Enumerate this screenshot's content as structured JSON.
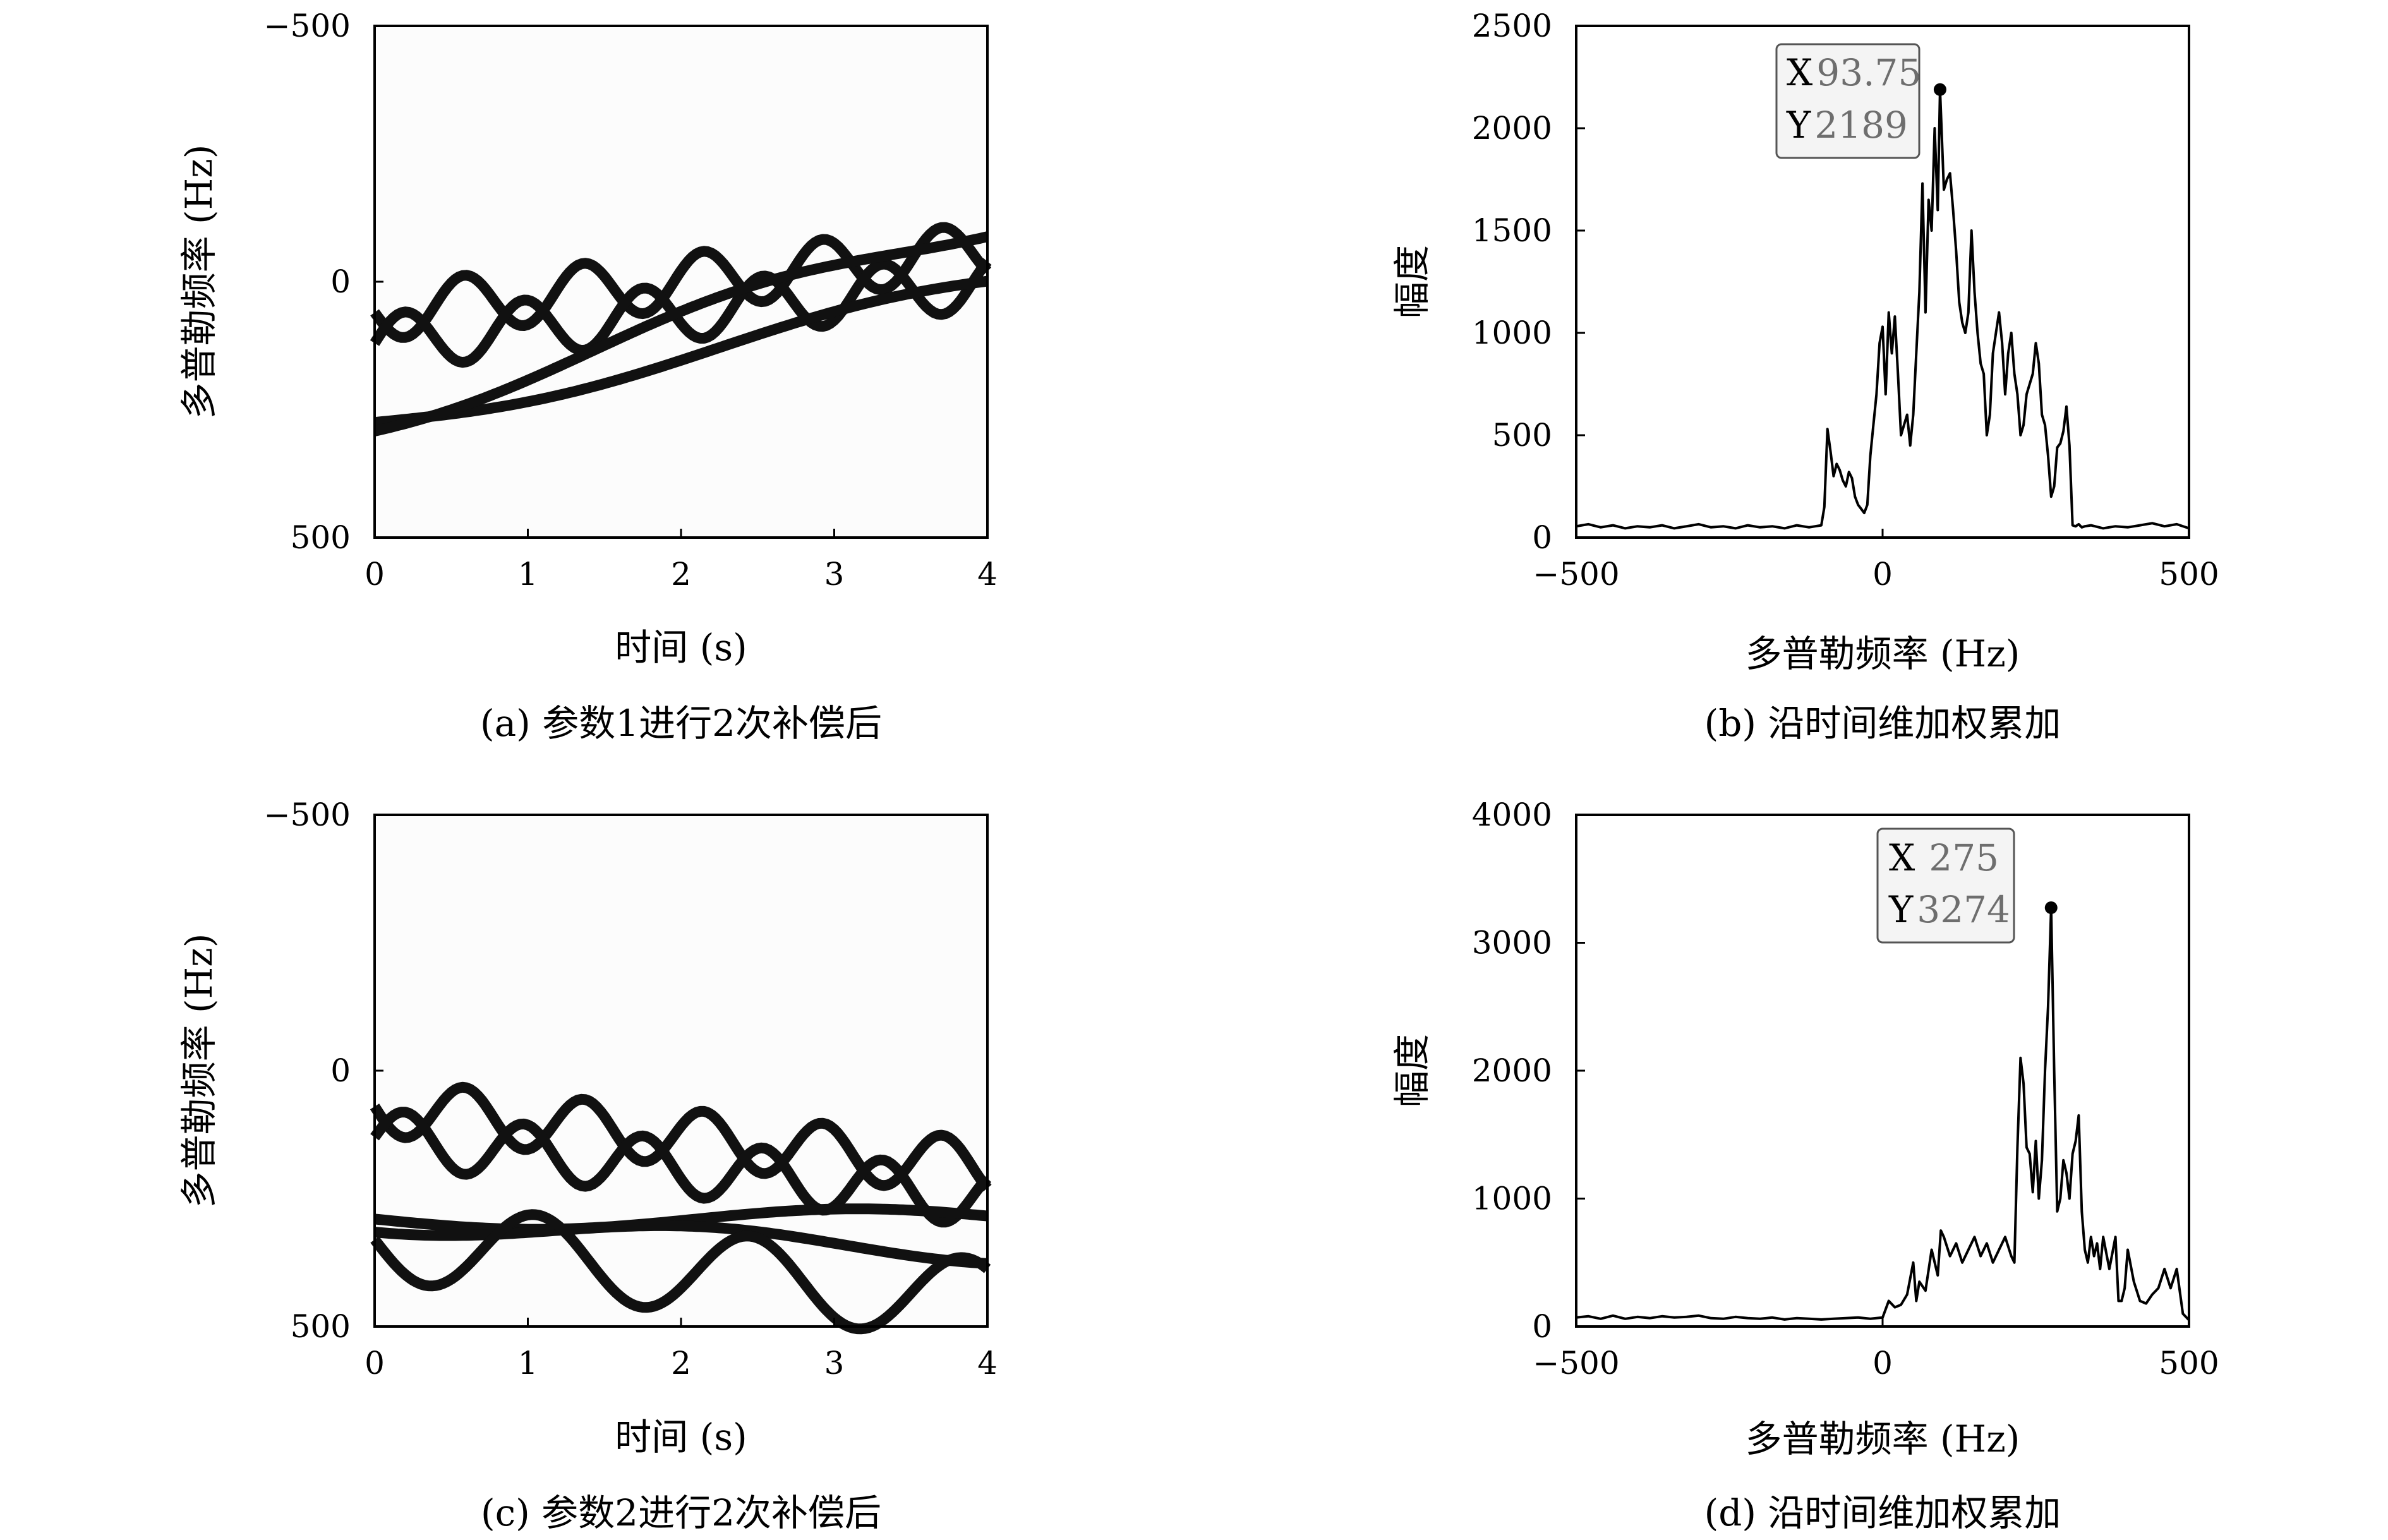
{
  "chart_data": [
    {
      "id": "a",
      "type": "heatmap",
      "caption": "(a) 参数1进行2次补偿后",
      "xlabel": "时间 (s)",
      "ylabel": "多普勒频率 (Hz)",
      "xlim": [
        0,
        4
      ],
      "ylim": [
        -500,
        500
      ],
      "y_inverted": true,
      "xticks": [
        0,
        1,
        2,
        3,
        4
      ],
      "yticks": [
        -500,
        0,
        500
      ],
      "xtick_labels": [
        "0",
        "1",
        "2",
        "3",
        "4"
      ],
      "ytick_labels": [
        "−500",
        "0",
        "500"
      ],
      "colormap": "gray-inverted",
      "ink_color": "#111111",
      "curves": [
        {
          "base": 60,
          "slope": -30,
          "amp": 55,
          "period": 0.78,
          "phase": 0.0
        },
        {
          "base": 120,
          "slope": -30,
          "amp": 55,
          "period": 0.78,
          "phase": 3.1416
        },
        {
          "base": 275,
          "slope": -65,
          "amp": 25,
          "period": 4.5,
          "phase": 0.0
        },
        {
          "base": 270,
          "slope": -95,
          "amp": 28,
          "period": 4.0,
          "phase": 0.9
        }
      ]
    },
    {
      "id": "b",
      "type": "line",
      "caption": "(b) 沿时间维加权累加",
      "xlabel": "多普勒频率 (Hz)",
      "ylabel": "幅度",
      "xlim": [
        -500,
        500
      ],
      "ylim": [
        0,
        2500
      ],
      "xticks": [
        -500,
        0,
        500
      ],
      "yticks": [
        0,
        500,
        1000,
        1500,
        2000,
        2500
      ],
      "xtick_labels": [
        "−500",
        "0",
        "500"
      ],
      "ytick_labels": [
        "0",
        "500",
        "1000",
        "1500",
        "2000",
        "2500"
      ],
      "line_color": "#000000",
      "x": [
        -500,
        -480,
        -460,
        -440,
        -420,
        -400,
        -380,
        -360,
        -340,
        -320,
        -300,
        -280,
        -260,
        -240,
        -220,
        -200,
        -180,
        -160,
        -140,
        -120,
        -110,
        -100,
        -95,
        -90,
        -85,
        -80,
        -75,
        -70,
        -65,
        -60,
        -55,
        -50,
        -45,
        -40,
        -35,
        -30,
        -25,
        -20,
        -15,
        -10,
        -5,
        0,
        5,
        10,
        15,
        20,
        25,
        30,
        35,
        40,
        45,
        50,
        55,
        60,
        65,
        70,
        75,
        80,
        85,
        90,
        93.75,
        100,
        105,
        110,
        115,
        120,
        125,
        130,
        135,
        140,
        145,
        150,
        155,
        160,
        165,
        170,
        175,
        180,
        185,
        190,
        195,
        200,
        205,
        210,
        215,
        220,
        225,
        230,
        235,
        240,
        245,
        250,
        255,
        260,
        265,
        270,
        275,
        280,
        285,
        290,
        295,
        300,
        305,
        310,
        315,
        320,
        325,
        330,
        340,
        360,
        380,
        400,
        420,
        440,
        460,
        480,
        500
      ],
      "y": [
        55,
        65,
        50,
        60,
        45,
        55,
        50,
        60,
        45,
        55,
        65,
        50,
        55,
        45,
        60,
        50,
        55,
        45,
        60,
        50,
        55,
        60,
        150,
        530,
        420,
        300,
        360,
        330,
        280,
        250,
        320,
        290,
        200,
        160,
        140,
        120,
        160,
        400,
        550,
        700,
        950,
        1030,
        700,
        1100,
        900,
        1080,
        800,
        500,
        550,
        600,
        450,
        600,
        900,
        1200,
        1730,
        1100,
        1650,
        1500,
        2000,
        1600,
        2189,
        1700,
        1750,
        1780,
        1600,
        1400,
        1150,
        1050,
        1000,
        1100,
        1500,
        1200,
        1000,
        850,
        800,
        500,
        600,
        900,
        1000,
        1100,
        950,
        700,
        900,
        1000,
        800,
        700,
        500,
        550,
        700,
        750,
        800,
        950,
        850,
        600,
        550,
        400,
        200,
        250,
        440,
        460,
        520,
        640,
        450,
        60,
        55,
        65,
        50,
        55,
        60,
        45,
        55,
        50,
        60,
        70,
        55,
        65,
        45
      ],
      "marker": {
        "x": 93.75,
        "y": 2189
      },
      "datatip": {
        "x_key": "X",
        "x_value": "93.75",
        "y_key": "Y",
        "y_value": "2189"
      }
    },
    {
      "id": "c",
      "type": "heatmap",
      "caption": "(c) 参数2进行2次补偿后",
      "xlabel": "时间 (s)",
      "ylabel": "多普勒频率 (Hz)",
      "xlim": [
        0,
        4
      ],
      "ylim": [
        -500,
        500
      ],
      "y_inverted": true,
      "xticks": [
        0,
        1,
        2,
        3,
        4
      ],
      "yticks": [
        -500,
        0,
        500
      ],
      "xtick_labels": [
        "0",
        "1",
        "2",
        "3",
        "4"
      ],
      "ytick_labels": [
        "−500",
        "0",
        "500"
      ],
      "colormap": "gray-inverted",
      "ink_color": "#111111",
      "curves": [
        {
          "base": 70,
          "slope": 30,
          "amp": 55,
          "period": 0.78,
          "phase": 0.0
        },
        {
          "base": 130,
          "slope": 30,
          "amp": 55,
          "period": 0.78,
          "phase": 3.1416
        },
        {
          "base": 290,
          "slope": 0,
          "amp": 20,
          "period": 4.2,
          "phase": 0.0
        },
        {
          "base": 295,
          "slope": 15,
          "amp": 22,
          "period": 3.8,
          "phase": 1.2
        },
        {
          "base": 330,
          "slope": 30,
          "amp": 80,
          "period": 1.4,
          "phase": 0.0
        }
      ]
    },
    {
      "id": "d",
      "type": "line",
      "caption": "(d) 沿时间维加权累加",
      "xlabel": "多普勒频率 (Hz)",
      "ylabel": "幅度",
      "xlim": [
        -500,
        500
      ],
      "ylim": [
        0,
        4000
      ],
      "xticks": [
        -500,
        0,
        500
      ],
      "yticks": [
        0,
        1000,
        2000,
        3000,
        4000
      ],
      "xtick_labels": [
        "−500",
        "0",
        "500"
      ],
      "ytick_labels": [
        "0",
        "1000",
        "2000",
        "3000",
        "4000"
      ],
      "line_color": "#000000",
      "x": [
        -500,
        -480,
        -460,
        -440,
        -420,
        -400,
        -380,
        -360,
        -340,
        -320,
        -300,
        -280,
        -260,
        -240,
        -220,
        -200,
        -180,
        -160,
        -140,
        -120,
        -100,
        -80,
        -60,
        -40,
        -20,
        0,
        10,
        20,
        30,
        40,
        50,
        55,
        60,
        70,
        80,
        90,
        95,
        100,
        110,
        120,
        130,
        140,
        150,
        160,
        170,
        180,
        190,
        200,
        210,
        215,
        220,
        225,
        230,
        235,
        240,
        245,
        250,
        255,
        260,
        265,
        270,
        275,
        280,
        285,
        290,
        295,
        300,
        305,
        310,
        315,
        320,
        325,
        330,
        335,
        340,
        345,
        350,
        355,
        360,
        370,
        380,
        385,
        390,
        395,
        400,
        410,
        420,
        430,
        440,
        450,
        460,
        470,
        480,
        490,
        500
      ],
      "y": [
        70,
        80,
        60,
        85,
        60,
        75,
        65,
        80,
        70,
        75,
        85,
        65,
        60,
        75,
        65,
        60,
        70,
        55,
        65,
        60,
        55,
        60,
        65,
        70,
        60,
        70,
        200,
        150,
        170,
        250,
        500,
        200,
        350,
        280,
        600,
        400,
        750,
        700,
        550,
        650,
        500,
        600,
        700,
        550,
        650,
        500,
        600,
        700,
        550,
        500,
        1400,
        2100,
        1900,
        1400,
        1350,
        1050,
        1450,
        1000,
        1300,
        2000,
        2500,
        3274,
        2000,
        900,
        1000,
        1300,
        1200,
        1000,
        1350,
        1450,
        1650,
        900,
        600,
        500,
        700,
        550,
        650,
        450,
        700,
        450,
        700,
        200,
        200,
        300,
        600,
        350,
        200,
        180,
        250,
        300,
        450,
        300,
        450,
        100,
        50
      ],
      "marker": {
        "x": 275,
        "y": 3274
      },
      "datatip": {
        "x_key": "X",
        "x_value": "275",
        "y_key": "Y",
        "y_value": "3274"
      }
    }
  ]
}
